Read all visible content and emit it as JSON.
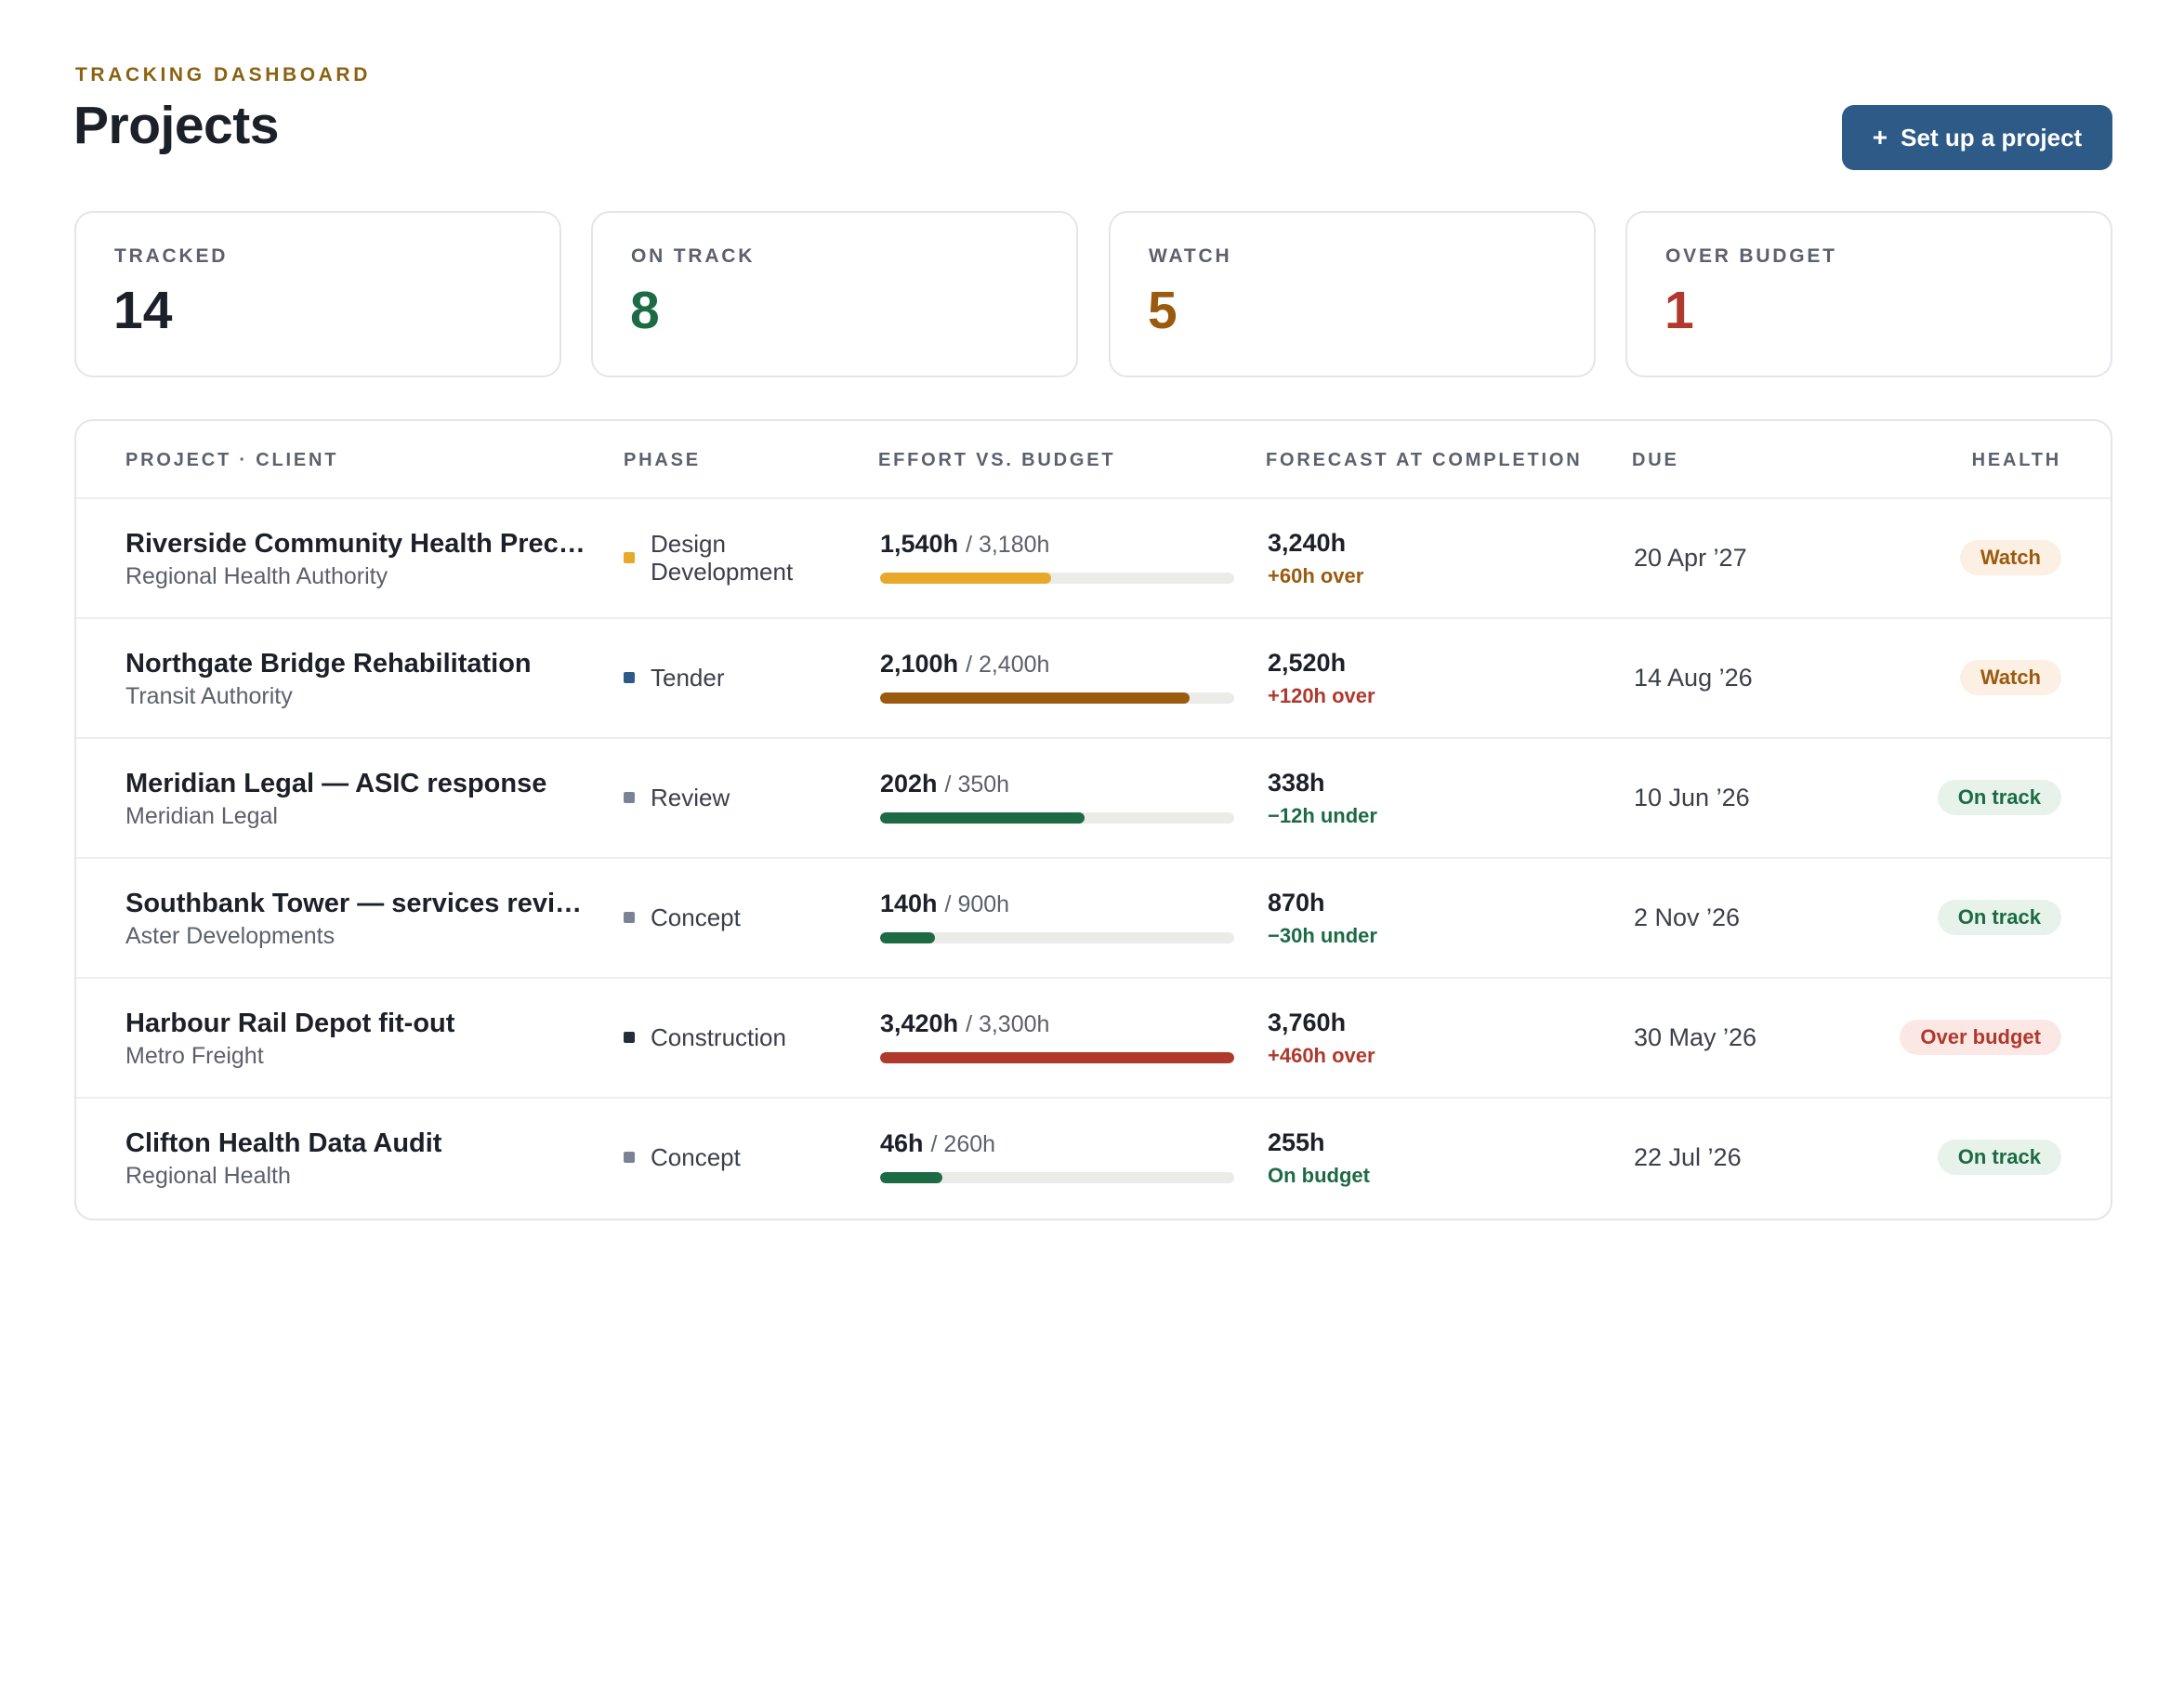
{
  "header": {
    "eyebrow": "TRACKING DASHBOARD",
    "title": "Projects",
    "cta_icon": "+",
    "cta_label": "Set up a project"
  },
  "stats": [
    {
      "label": "TRACKED",
      "value": "14",
      "color": "#1c2029"
    },
    {
      "label": "ON TRACK",
      "value": "8",
      "color": "#1c6b45"
    },
    {
      "label": "WATCH",
      "value": "5",
      "color": "#9a5b0f"
    },
    {
      "label": "OVER BUDGET",
      "value": "1",
      "color": "#b0382c"
    }
  ],
  "table": {
    "columns": [
      "PROJECT · CLIENT",
      "PHASE",
      "EFFORT VS. BUDGET",
      "FORECAST AT COMPLETION",
      "DUE",
      "HEALTH"
    ],
    "rows": [
      {
        "name": "Riverside Community Health Precinct",
        "client": "Regional Health Authority",
        "phase": "Design Development",
        "phase_color": "#e8a92a",
        "used": "1,540h",
        "budget": "/ 3,180h",
        "progress": 0.484,
        "bar_color": "#e8a92a",
        "forecast": "3,240h",
        "variance": "+60h over",
        "variance_color": "#9a5b0f",
        "due": "20 Apr ’27",
        "health": "Watch",
        "health_bg": "#fcefe3",
        "health_fg": "#9a5b0f"
      },
      {
        "name": "Northgate Bridge Rehabilitation",
        "client": "Transit Authority",
        "phase": "Tender",
        "phase_color": "#2e5a87",
        "used": "2,100h",
        "budget": "/ 2,400h",
        "progress": 0.875,
        "bar_color": "#9a5b0f",
        "forecast": "2,520h",
        "variance": "+120h over",
        "variance_color": "#b0382c",
        "due": "14 Aug ’26",
        "health": "Watch",
        "health_bg": "#fcefe3",
        "health_fg": "#9a5b0f"
      },
      {
        "name": "Meridian Legal — ASIC response",
        "client": "Meridian Legal",
        "phase": "Review",
        "phase_color": "#7a8396",
        "used": "202h",
        "budget": "/ 350h",
        "progress": 0.577,
        "bar_color": "#1c6b45",
        "forecast": "338h",
        "variance": "−12h under",
        "variance_color": "#1c6b45",
        "due": "10 Jun ’26",
        "health": "On track",
        "health_bg": "#e6f2ea",
        "health_fg": "#1c6b45"
      },
      {
        "name": "Southbank Tower — services review",
        "client": "Aster Developments",
        "phase": "Concept",
        "phase_color": "#7a8396",
        "used": "140h",
        "budget": "/ 900h",
        "progress": 0.156,
        "bar_color": "#1c6b45",
        "forecast": "870h",
        "variance": "−30h under",
        "variance_color": "#1c6b45",
        "due": "2 Nov ’26",
        "health": "On track",
        "health_bg": "#e6f2ea",
        "health_fg": "#1c6b45"
      },
      {
        "name": "Harbour Rail Depot fit-out",
        "client": "Metro Freight",
        "phase": "Construction",
        "phase_color": "#252c3a",
        "used": "3,420h",
        "budget": "/ 3,300h",
        "progress": 1.0,
        "bar_color": "#b0382c",
        "forecast": "3,760h",
        "variance": "+460h over",
        "variance_color": "#b0382c",
        "due": "30 May ’26",
        "health": "Over budget",
        "health_bg": "#fbe8e5",
        "health_fg": "#b0382c"
      },
      {
        "name": "Clifton Health Data Audit",
        "client": "Regional Health",
        "phase": "Concept",
        "phase_color": "#7a8396",
        "used": "46h",
        "budget": "/ 260h",
        "progress": 0.177,
        "bar_color": "#1c6b45",
        "forecast": "255h",
        "variance": "On budget",
        "variance_color": "#1c6b45",
        "due": "22 Jul ’26",
        "health": "On track",
        "health_bg": "#e6f2ea",
        "health_fg": "#1c6b45"
      }
    ]
  }
}
